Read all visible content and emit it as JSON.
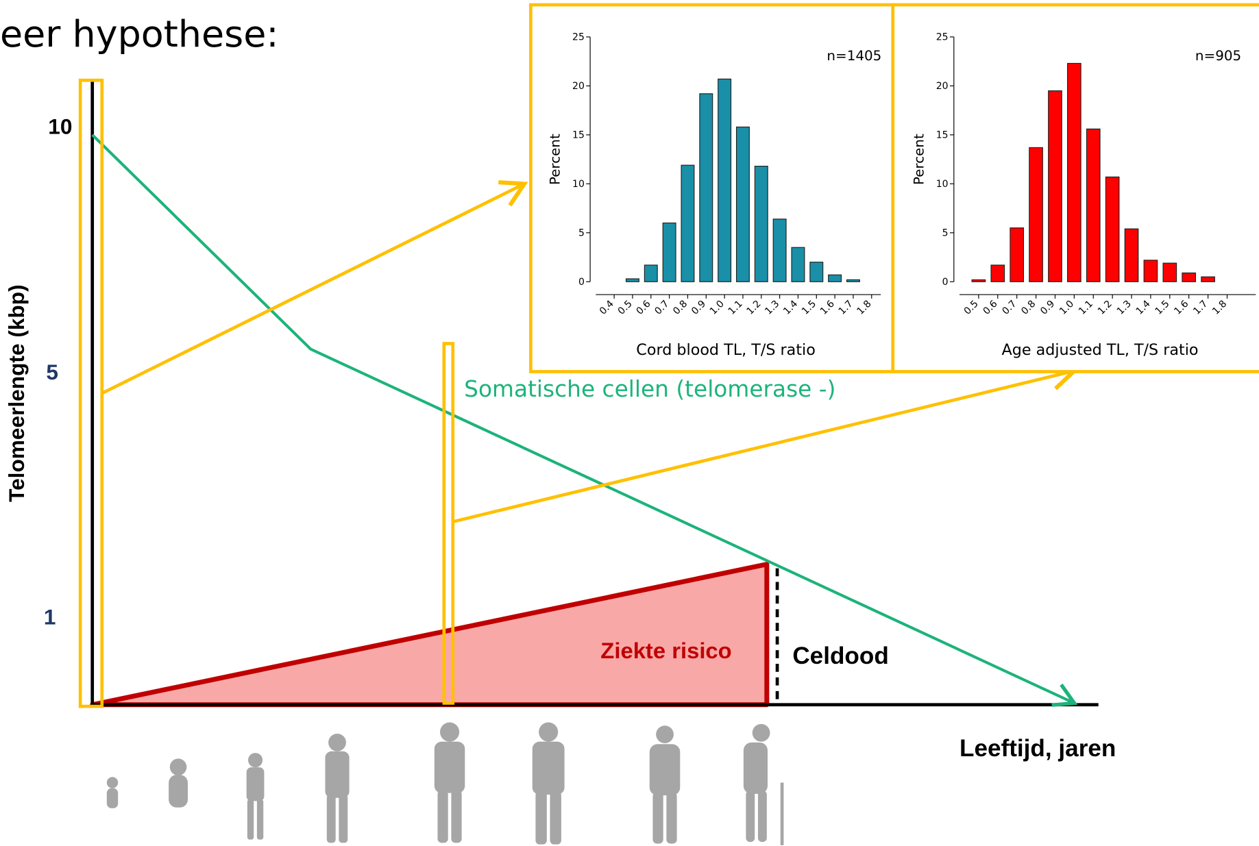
{
  "title": "eer hypothese:",
  "diagram": {
    "y_axis_label": "Telomeerlengte (kbp)",
    "y_ticks": [
      10,
      5,
      1
    ],
    "x_axis_label": "Leeftijd, jaren",
    "line_label": "Somatische cellen (telomerase -)",
    "area_label": "Ziekte risico",
    "death_label": "Celdood"
  },
  "chart_data": [
    {
      "type": "bar",
      "color": "#1a8fa8",
      "annotation": "n=1405",
      "ylabel": "Percent",
      "xlabel": "Cord blood TL, T/S ratio",
      "x": [
        0.5,
        0.6,
        0.7,
        0.8,
        0.9,
        1.0,
        1.1,
        1.2,
        1.3,
        1.4,
        1.5,
        1.6,
        1.7
      ],
      "values": [
        0.3,
        1.7,
        6,
        11.9,
        19.2,
        20.7,
        15.8,
        11.8,
        6.4,
        3.5,
        2.0,
        0.7,
        0.2
      ],
      "xlim": [
        0.3,
        1.85
      ],
      "ylim": [
        0,
        25
      ],
      "yticks": [
        0,
        5,
        10,
        15,
        20,
        25
      ],
      "xticks": [
        0.4,
        0.5,
        0.6,
        0.7,
        0.8,
        0.9,
        {
          "value": 1.0,
          "label": "1.0"
        },
        1.1,
        1.2,
        1.3,
        1.4,
        1.5,
        1.6,
        1.7,
        1.8
      ]
    },
    {
      "type": "bar",
      "color": "#ff0000",
      "annotation": "n=905",
      "ylabel": "Percent",
      "xlabel": "Age adjusted TL, T/S ratio",
      "x": [
        0.5,
        0.6,
        0.7,
        0.8,
        0.9,
        1.0,
        1.1,
        1.2,
        1.3,
        1.4,
        1.5,
        1.6,
        1.7
      ],
      "values": [
        0.2,
        1.7,
        5.5,
        13.7,
        19.5,
        22.3,
        15.6,
        10.7,
        5.4,
        2.2,
        1.9,
        0.9,
        0.5
      ],
      "xlim": [
        0.4,
        1.95
      ],
      "ylim": [
        0,
        25
      ],
      "yticks": [
        0,
        5,
        10,
        15,
        20,
        25
      ],
      "xticks": [
        0.5,
        0.6,
        0.7,
        0.8,
        0.9,
        {
          "value": 1.0,
          "label": "1.0"
        },
        1.1,
        1.2,
        1.3,
        1.4,
        1.5,
        1.6,
        1.7,
        1.8
      ]
    }
  ]
}
